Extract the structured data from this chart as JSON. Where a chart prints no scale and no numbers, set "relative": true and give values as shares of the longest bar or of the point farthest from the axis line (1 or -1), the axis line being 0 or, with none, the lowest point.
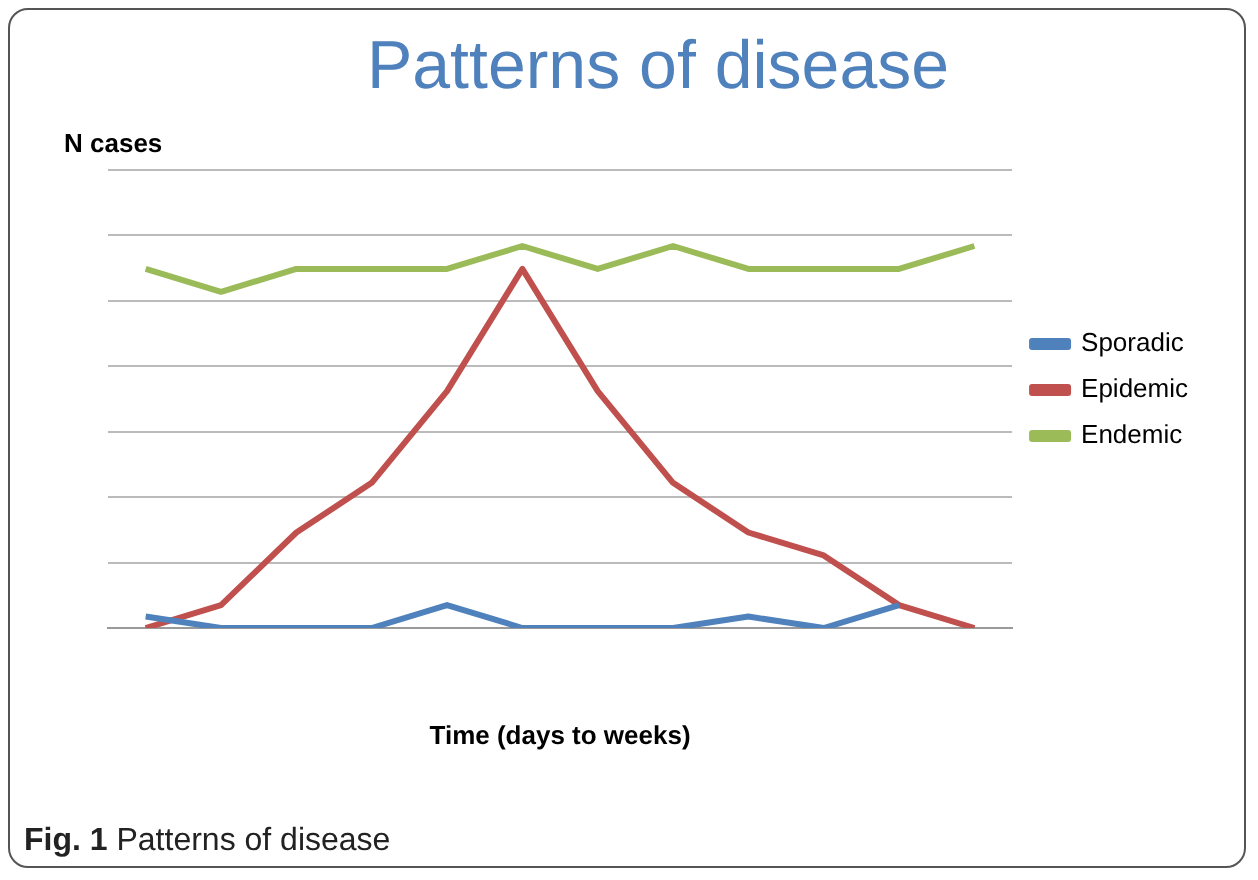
{
  "chart_data": {
    "type": "line",
    "title": "Patterns of disease",
    "xlabel": "Time (days to weeks)",
    "ylabel": "N cases",
    "relative": true,
    "grid": "y",
    "legend": "right",
    "marker": "none",
    "categories": [
      null,
      null,
      null,
      null,
      null,
      null,
      null,
      null,
      null,
      null,
      null,
      null
    ],
    "series": [
      {
        "name": "Sporadic",
        "color": "#4f81bd",
        "values": [
          0.03,
          0,
          0,
          0,
          0.06,
          0,
          0,
          0,
          0.03,
          0,
          0.06,
          null
        ]
      },
      {
        "name": "Epidemic",
        "color": "#c0504d",
        "values": [
          0,
          0.06,
          0.25,
          0.38,
          0.62,
          0.94,
          0.62,
          0.38,
          0.25,
          0.19,
          0.06,
          0
        ]
      },
      {
        "name": "Endemic",
        "color": "#9bbb59",
        "values": [
          0.94,
          0.88,
          0.94,
          0.94,
          0.94,
          1,
          0.94,
          1,
          0.94,
          0.94,
          0.94,
          1
        ]
      }
    ],
    "annotations": [
      "Fig. 1 Patterns of disease"
    ]
  }
}
